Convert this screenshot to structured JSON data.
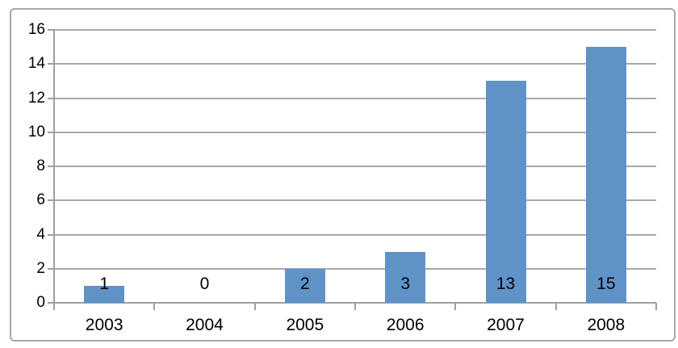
{
  "chart_data": {
    "type": "bar",
    "title": "",
    "xlabel": "",
    "ylabel": "",
    "categories": [
      "2003",
      "2004",
      "2005",
      "2006",
      "2007",
      "2008"
    ],
    "values": [
      1,
      0,
      2,
      3,
      13,
      15
    ],
    "data_labels": [
      "1",
      "0",
      "2",
      "3",
      "13",
      "15"
    ],
    "ylim": [
      0,
      16
    ],
    "ytick_step": 2,
    "yticks": [
      "0",
      "2",
      "4",
      "6",
      "8",
      "10",
      "12",
      "14",
      "16"
    ],
    "grid": "horizontal",
    "legend_position": "none",
    "colors": {
      "bar_fill": "#5F93C8",
      "gridline": "#A9A9A9",
      "axis_line": "#9E9E9E",
      "frame_border": "#A8A8A8",
      "text": "#000000",
      "background": "#FFFFFF"
    }
  }
}
